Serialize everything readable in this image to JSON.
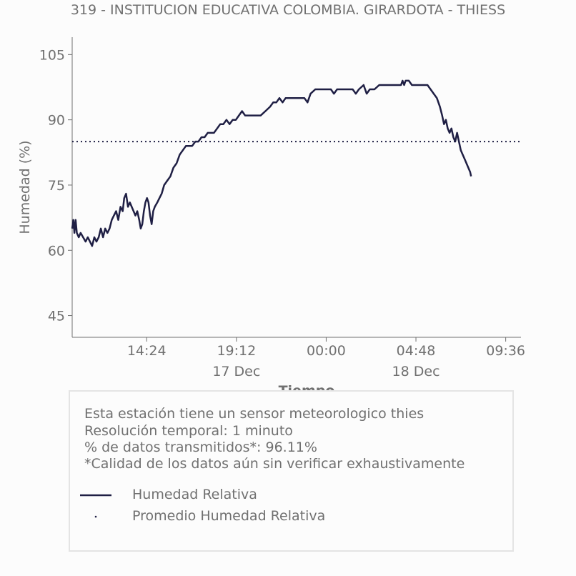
{
  "title": "319 - INSTITUCION EDUCATIVA COLOMBIA. GIRARDOTA - THIESS",
  "chart_data": {
    "type": "line",
    "title": "319 - INSTITUCION EDUCATIVA COLOMBIA. GIRARDOTA - THIESS",
    "xlabel": "Tiempo",
    "ylabel": "Humedad (%)",
    "ylim": [
      40,
      109
    ],
    "yticks": [
      45,
      60,
      75,
      90,
      105
    ],
    "xticks": [
      {
        "label": "14:24",
        "time": "2023-12-17T14:24"
      },
      {
        "label": "19:12",
        "time": "2023-12-17T19:12",
        "sublabel": "17 Dec"
      },
      {
        "label": "00:00",
        "time": "2023-12-18T00:00"
      },
      {
        "label": "04:48",
        "time": "2023-12-18T04:48",
        "sublabel": "18 Dec"
      },
      {
        "label": "09:36",
        "time": "2023-12-18T09:36"
      }
    ],
    "xlim": [
      "2023-12-17T10:25",
      "2023-12-18T10:25"
    ],
    "grid": false,
    "series": [
      {
        "name": "Humedad Relativa",
        "color": "#1f1f44",
        "style": "solid",
        "points": [
          [
            "2023-12-17T10:25",
            65
          ],
          [
            "2023-12-17T10:29",
            67
          ],
          [
            "2023-12-17T10:32",
            64
          ],
          [
            "2023-12-17T10:36",
            67
          ],
          [
            "2023-12-17T10:40",
            64
          ],
          [
            "2023-12-17T10:46",
            63
          ],
          [
            "2023-12-17T10:52",
            64
          ],
          [
            "2023-12-17T11:00",
            63
          ],
          [
            "2023-12-17T11:08",
            62
          ],
          [
            "2023-12-17T11:15",
            63
          ],
          [
            "2023-12-17T11:22",
            62
          ],
          [
            "2023-12-17T11:29",
            61
          ],
          [
            "2023-12-17T11:36",
            63
          ],
          [
            "2023-12-17T11:43",
            62
          ],
          [
            "2023-12-17T11:50",
            63
          ],
          [
            "2023-12-17T11:57",
            65
          ],
          [
            "2023-12-17T12:04",
            63
          ],
          [
            "2023-12-17T12:11",
            65
          ],
          [
            "2023-12-17T12:18",
            64
          ],
          [
            "2023-12-17T12:25",
            65
          ],
          [
            "2023-12-17T12:32",
            67
          ],
          [
            "2023-12-17T12:39",
            68
          ],
          [
            "2023-12-17T12:46",
            69
          ],
          [
            "2023-12-17T12:53",
            67
          ],
          [
            "2023-12-17T13:00",
            70
          ],
          [
            "2023-12-17T13:07",
            69
          ],
          [
            "2023-12-17T13:12",
            72
          ],
          [
            "2023-12-17T13:18",
            73
          ],
          [
            "2023-12-17T13:24",
            70
          ],
          [
            "2023-12-17T13:30",
            71
          ],
          [
            "2023-12-17T13:36",
            70
          ],
          [
            "2023-12-17T13:42",
            69
          ],
          [
            "2023-12-17T13:48",
            68
          ],
          [
            "2023-12-17T13:54",
            69
          ],
          [
            "2023-12-17T14:00",
            67
          ],
          [
            "2023-12-17T14:05",
            65
          ],
          [
            "2023-12-17T14:10",
            66
          ],
          [
            "2023-12-17T14:15",
            69
          ],
          [
            "2023-12-17T14:20",
            71
          ],
          [
            "2023-12-17T14:25",
            72
          ],
          [
            "2023-12-17T14:30",
            71
          ],
          [
            "2023-12-17T14:35",
            68
          ],
          [
            "2023-12-17T14:40",
            66
          ],
          [
            "2023-12-17T14:45",
            69
          ],
          [
            "2023-12-17T14:50",
            70
          ],
          [
            "2023-12-17T14:58",
            71
          ],
          [
            "2023-12-17T15:05",
            72
          ],
          [
            "2023-12-17T15:12",
            73
          ],
          [
            "2023-12-17T15:20",
            75
          ],
          [
            "2023-12-17T15:30",
            76
          ],
          [
            "2023-12-17T15:40",
            77
          ],
          [
            "2023-12-17T15:50",
            79
          ],
          [
            "2023-12-17T16:00",
            80
          ],
          [
            "2023-12-17T16:10",
            82
          ],
          [
            "2023-12-17T16:20",
            83
          ],
          [
            "2023-12-17T16:30",
            84
          ],
          [
            "2023-12-17T16:40",
            84
          ],
          [
            "2023-12-17T16:50",
            84
          ],
          [
            "2023-12-17T17:00",
            85
          ],
          [
            "2023-12-17T17:10",
            85
          ],
          [
            "2023-12-17T17:20",
            86
          ],
          [
            "2023-12-17T17:30",
            86
          ],
          [
            "2023-12-17T17:40",
            87
          ],
          [
            "2023-12-17T17:50",
            87
          ],
          [
            "2023-12-17T18:00",
            87
          ],
          [
            "2023-12-17T18:10",
            88
          ],
          [
            "2023-12-17T18:20",
            89
          ],
          [
            "2023-12-17T18:30",
            89
          ],
          [
            "2023-12-17T18:40",
            90
          ],
          [
            "2023-12-17T18:50",
            89
          ],
          [
            "2023-12-17T19:00",
            90
          ],
          [
            "2023-12-17T19:10",
            90
          ],
          [
            "2023-12-17T19:20",
            91
          ],
          [
            "2023-12-17T19:30",
            92
          ],
          [
            "2023-12-17T19:40",
            91
          ],
          [
            "2023-12-17T19:50",
            91
          ],
          [
            "2023-12-17T20:10",
            91
          ],
          [
            "2023-12-17T20:30",
            91
          ],
          [
            "2023-12-17T20:45",
            92
          ],
          [
            "2023-12-17T21:00",
            93
          ],
          [
            "2023-12-17T21:10",
            94
          ],
          [
            "2023-12-17T21:20",
            94
          ],
          [
            "2023-12-17T21:30",
            95
          ],
          [
            "2023-12-17T21:40",
            94
          ],
          [
            "2023-12-17T21:50",
            95
          ],
          [
            "2023-12-17T22:10",
            95
          ],
          [
            "2023-12-17T22:30",
            95
          ],
          [
            "2023-12-17T22:50",
            95
          ],
          [
            "2023-12-17T23:00",
            94
          ],
          [
            "2023-12-17T23:10",
            96
          ],
          [
            "2023-12-17T23:25",
            97
          ],
          [
            "2023-12-17T23:45",
            97
          ],
          [
            "2023-12-18T00:00",
            97
          ],
          [
            "2023-12-18T00:15",
            97
          ],
          [
            "2023-12-18T00:25",
            96
          ],
          [
            "2023-12-18T00:35",
            97
          ],
          [
            "2023-12-18T00:55",
            97
          ],
          [
            "2023-12-18T01:10",
            97
          ],
          [
            "2023-12-18T01:25",
            97
          ],
          [
            "2023-12-18T01:35",
            96
          ],
          [
            "2023-12-18T01:45",
            97
          ],
          [
            "2023-12-18T02:00",
            98
          ],
          [
            "2023-12-18T02:10",
            96
          ],
          [
            "2023-12-18T02:20",
            97
          ],
          [
            "2023-12-18T02:35",
            97
          ],
          [
            "2023-12-18T02:50",
            98
          ],
          [
            "2023-12-18T03:10",
            98
          ],
          [
            "2023-12-18T03:30",
            98
          ],
          [
            "2023-12-18T03:50",
            98
          ],
          [
            "2023-12-18T04:00",
            98
          ],
          [
            "2023-12-18T04:05",
            99
          ],
          [
            "2023-12-18T04:10",
            98
          ],
          [
            "2023-12-18T04:15",
            99
          ],
          [
            "2023-12-18T04:25",
            99
          ],
          [
            "2023-12-18T04:35",
            98
          ],
          [
            "2023-12-18T04:50",
            98
          ],
          [
            "2023-12-18T05:10",
            98
          ],
          [
            "2023-12-18T05:25",
            98
          ],
          [
            "2023-12-18T05:35",
            97
          ],
          [
            "2023-12-18T05:45",
            96
          ],
          [
            "2023-12-18T05:55",
            95
          ],
          [
            "2023-12-18T06:05",
            93
          ],
          [
            "2023-12-18T06:12",
            91
          ],
          [
            "2023-12-18T06:18",
            89
          ],
          [
            "2023-12-18T06:24",
            90
          ],
          [
            "2023-12-18T06:30",
            88
          ],
          [
            "2023-12-18T06:36",
            87
          ],
          [
            "2023-12-18T06:42",
            88
          ],
          [
            "2023-12-18T06:48",
            86
          ],
          [
            "2023-12-18T06:54",
            85
          ],
          [
            "2023-12-18T07:00",
            87
          ],
          [
            "2023-12-18T07:06",
            85
          ],
          [
            "2023-12-18T07:12",
            83
          ],
          [
            "2023-12-18T07:18",
            82
          ],
          [
            "2023-12-18T07:24",
            81
          ],
          [
            "2023-12-18T07:30",
            80
          ],
          [
            "2023-12-18T07:36",
            79
          ],
          [
            "2023-12-18T07:42",
            78
          ],
          [
            "2023-12-18T07:45",
            77
          ]
        ]
      },
      {
        "name": "Promedio Humedad Relativa",
        "color": "#1f1f44",
        "style": "dotted",
        "value": 85
      }
    ]
  },
  "info": {
    "lines": [
      "Esta estación tiene un sensor meteorologico thies",
      "Resolución temporal: 1 minuto",
      "% de datos transmitidos*: 96.11%",
      "*Calidad de los datos aún sin verificar exhaustivamente"
    ]
  },
  "legend": {
    "items": [
      {
        "label": "Humedad Relativa",
        "marker": "line"
      },
      {
        "label": "Promedio Humedad Relativa",
        "marker": "dot"
      }
    ]
  }
}
